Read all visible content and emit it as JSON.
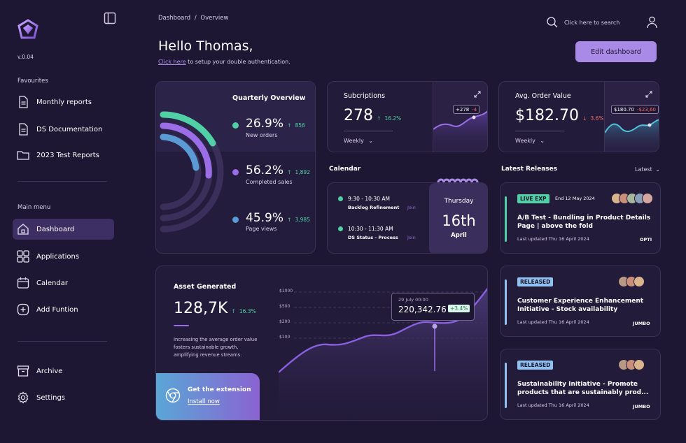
{
  "app": {
    "version": "v.0.04"
  },
  "sidebar": {
    "favourites_label": "Favourites",
    "favourites": [
      {
        "label": "Monthly reports",
        "icon": "document-icon"
      },
      {
        "label": "DS Documentation",
        "icon": "document-icon"
      },
      {
        "label": "2023 Test Reports",
        "icon": "folder-icon"
      }
    ],
    "main_menu_label": "Main menu",
    "main_menu": [
      {
        "label": "Dashboard",
        "icon": "home-icon",
        "active": true
      },
      {
        "label": "Applications",
        "icon": "grid-icon"
      },
      {
        "label": "Calendar",
        "icon": "calendar-icon"
      },
      {
        "label": "Add Funtion",
        "icon": "plus-square-icon"
      }
    ],
    "bottom": [
      {
        "label": "Archive",
        "icon": "archive-icon"
      },
      {
        "label": "Settings",
        "icon": "gear-icon"
      }
    ]
  },
  "header": {
    "breadcrumb_root": "Dashboard",
    "breadcrumb_sep": "/",
    "breadcrumb_current": "Overview",
    "search_placeholder": "Click here to search",
    "greeting": "Hello Thomas,",
    "auth_link": "Click here",
    "auth_text": " to setup your double authentication.",
    "edit_button": "Edit dashboard"
  },
  "quarterly": {
    "title": "Quarterly Overview",
    "items": [
      {
        "pct": "26.9%",
        "change": "856",
        "label": "New orders",
        "color": "#4fd1a5"
      },
      {
        "pct": "56.2%",
        "change": "1,892",
        "label": "Completed sales",
        "color": "#9b6ee8"
      },
      {
        "pct": "45.9%",
        "change": "3,985",
        "label": "Page views",
        "color": "#5b9bd5"
      }
    ]
  },
  "subscriptions": {
    "title": "Subcriptions",
    "value": "278",
    "change": "16.2%",
    "period": "Weekly",
    "tooltip_value": "+278",
    "tooltip_delta": "-4"
  },
  "avg_order": {
    "title": "Avg. Order Value",
    "value": "$182.70",
    "change": "3.6%",
    "period": "Weekly",
    "tooltip_value": "$180.70",
    "tooltip_delta": "-$23,60"
  },
  "calendar": {
    "title": "Calendar",
    "events": [
      {
        "time": "9:30 - 10:30 AM",
        "name": "Backlog Refinement",
        "action": "Join"
      },
      {
        "time": "10:30 - 11:30 AM",
        "name": "DS Status - Process",
        "action": "Join"
      }
    ],
    "day_name": "Thursday",
    "day_num": "16th",
    "month": "April"
  },
  "asset": {
    "title": "Asset Generated",
    "value": "128,7K",
    "change": "16.3%",
    "description": "Increasing the average order value fosters sustainable growth, amplifying revenue streams.",
    "tooltip_date": "29 July 00:00",
    "tooltip_value": "220,342.76",
    "tooltip_delta": "+3.4%",
    "y_ticks": [
      "$1000",
      "$500",
      "$200",
      "$100"
    ]
  },
  "extension": {
    "title": "Get the extension",
    "link": "Install now"
  },
  "releases": {
    "title": "Latest Releases",
    "filter": "Latest",
    "items": [
      {
        "badge": "LIVE EXP",
        "badge_color": "#4fd1a5",
        "date": "End 12 May 2024",
        "title": "A/B Test - Bundling in Product Details Page | above the fold",
        "updated": "Last updated Thu 16 April 2024",
        "brand": "OPTI",
        "bar_color": "#4fd1a5"
      },
      {
        "badge": "RELEASED",
        "badge_color": "#8fc2f0",
        "date": "",
        "title": "Customer Experience Enhancement Initiative - Stock availability",
        "updated": "Last updated Thu 16 April 2024",
        "brand": "JUMBO",
        "bar_color": "#8fc2f0"
      },
      {
        "badge": "RELEASED",
        "badge_color": "#8fc2f0",
        "date": "",
        "title": "Sustainability Initiative - Promote products that are sustainably prod...",
        "updated": "Last updated Thu 16 April 2024",
        "brand": "JUMBO",
        "bar_color": "#8fc2f0"
      }
    ]
  },
  "colors": {
    "accent": "#a98ae6",
    "background": "#1e1733",
    "card": "#231b3a",
    "green": "#4fd1a5",
    "red": "#f06a6a"
  }
}
